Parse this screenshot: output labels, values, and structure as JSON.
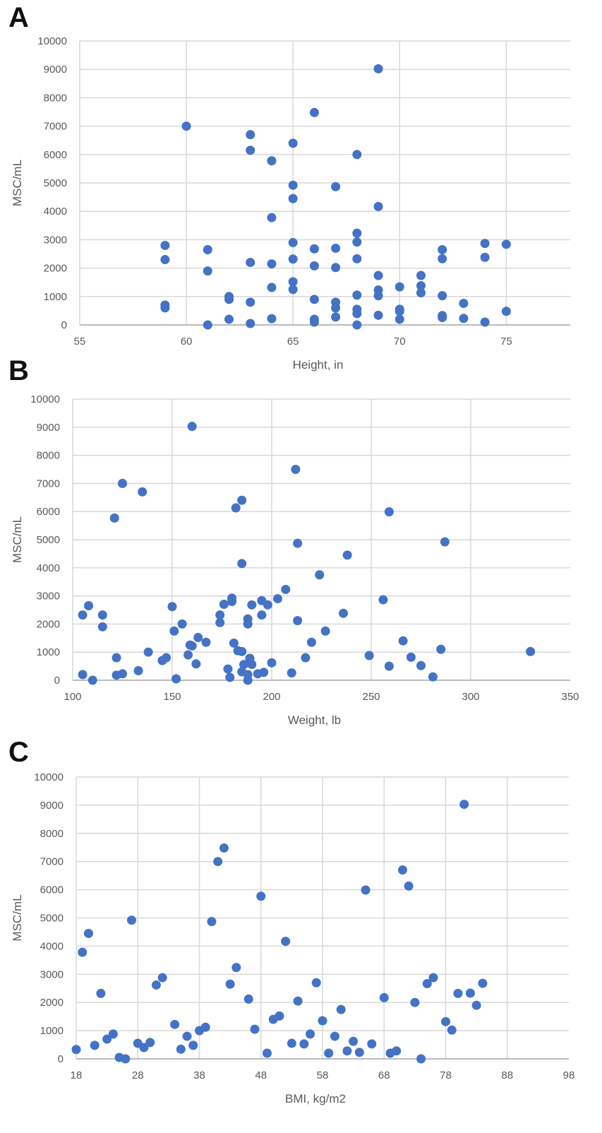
{
  "chart_data": [
    {
      "type": "scatter",
      "panel": "A",
      "xlabel": "Height, in",
      "ylabel": "MSC/mL",
      "xlim": [
        55,
        78
      ],
      "ylim": [
        0,
        10000
      ],
      "xticks": [
        55,
        60,
        65,
        70,
        75
      ],
      "yticks": [
        0,
        1000,
        2000,
        3000,
        4000,
        5000,
        6000,
        7000,
        8000,
        9000,
        10000
      ],
      "series": [
        {
          "color": "#4472c4",
          "points": [
            [
              59,
              2800
            ],
            [
              59,
              2300
            ],
            [
              59,
              700
            ],
            [
              59,
              600
            ],
            [
              60,
              7000
            ],
            [
              61,
              2650
            ],
            [
              61,
              1900
            ],
            [
              61,
              0
            ],
            [
              62,
              1000
            ],
            [
              62,
              900
            ],
            [
              62,
              200
            ],
            [
              63,
              6700
            ],
            [
              63,
              6150
            ],
            [
              63,
              2200
            ],
            [
              63,
              800
            ],
            [
              63,
              50
            ],
            [
              64,
              5780
            ],
            [
              64,
              3780
            ],
            [
              64,
              2150
            ],
            [
              64,
              1320
            ],
            [
              64,
              220
            ],
            [
              65,
              6400
            ],
            [
              65,
              4920
            ],
            [
              65,
              4450
            ],
            [
              65,
              2900
            ],
            [
              65,
              2320
            ],
            [
              65,
              1520
            ],
            [
              65,
              1250
            ],
            [
              66,
              7480
            ],
            [
              66,
              2680
            ],
            [
              66,
              2080
            ],
            [
              66,
              900
            ],
            [
              66,
              200
            ],
            [
              66,
              100
            ],
            [
              67,
              4870
            ],
            [
              67,
              2700
            ],
            [
              67,
              2020
            ],
            [
              67,
              800
            ],
            [
              67,
              600
            ],
            [
              67,
              280
            ],
            [
              68,
              6000
            ],
            [
              68,
              3230
            ],
            [
              68,
              2920
            ],
            [
              68,
              2330
            ],
            [
              68,
              1050
            ],
            [
              68,
              550
            ],
            [
              68,
              400
            ],
            [
              68,
              0
            ],
            [
              69,
              9020
            ],
            [
              69,
              4170
            ],
            [
              69,
              1740
            ],
            [
              69,
              1230
            ],
            [
              69,
              1030
            ],
            [
              69,
              340
            ],
            [
              70,
              1340
            ],
            [
              70,
              550
            ],
            [
              70,
              480
            ],
            [
              70,
              200
            ],
            [
              71,
              1740
            ],
            [
              71,
              1380
            ],
            [
              71,
              1130
            ],
            [
              72,
              2650
            ],
            [
              72,
              2330
            ],
            [
              72,
              1030
            ],
            [
              72,
              330
            ],
            [
              72,
              260
            ],
            [
              73,
              760
            ],
            [
              73,
              230
            ],
            [
              74,
              2870
            ],
            [
              74,
              2380
            ],
            [
              74,
              100
            ],
            [
              75,
              2840
            ],
            [
              75,
              480
            ]
          ]
        }
      ]
    },
    {
      "type": "scatter",
      "panel": "B",
      "xlabel": "Weight, lb",
      "ylabel": "MSC/mL",
      "xlim": [
        100,
        350
      ],
      "ylim": [
        0,
        10000
      ],
      "xticks": [
        100,
        150,
        200,
        250,
        300,
        350
      ],
      "yticks": [
        0,
        1000,
        2000,
        3000,
        4000,
        5000,
        6000,
        7000,
        8000,
        9000,
        10000
      ],
      "series": [
        {
          "color": "#4472c4",
          "points": [
            [
              105,
              2320
            ],
            [
              105,
              200
            ],
            [
              108,
              2650
            ],
            [
              110,
              0
            ],
            [
              115,
              2320
            ],
            [
              115,
              1900
            ],
            [
              121,
              5770
            ],
            [
              122,
              800
            ],
            [
              122,
              180
            ],
            [
              125,
              7000
            ],
            [
              125,
              230
            ],
            [
              133,
              340
            ],
            [
              135,
              6700
            ],
            [
              138,
              1000
            ],
            [
              145,
              700
            ],
            [
              147,
              800
            ],
            [
              150,
              2620
            ],
            [
              151,
              1750
            ],
            [
              152,
              50
            ],
            [
              155,
              2000
            ],
            [
              158,
              900
            ],
            [
              159,
              1250
            ],
            [
              160,
              1220
            ],
            [
              160,
              9030
            ],
            [
              162,
              580
            ],
            [
              163,
              1520
            ],
            [
              167,
              1350
            ],
            [
              174,
              2050
            ],
            [
              174,
              2320
            ],
            [
              176,
              2700
            ],
            [
              178,
              400
            ],
            [
              179,
              100
            ],
            [
              180,
              2920
            ],
            [
              180,
              2800
            ],
            [
              181,
              1320
            ],
            [
              182,
              6130
            ],
            [
              183,
              1050
            ],
            [
              185,
              6400
            ],
            [
              185,
              4150
            ],
            [
              185,
              1020
            ],
            [
              185,
              300
            ],
            [
              186,
              560
            ],
            [
              188,
              2180
            ],
            [
              188,
              2000
            ],
            [
              188,
              200
            ],
            [
              188,
              0
            ],
            [
              189,
              780
            ],
            [
              190,
              2680
            ],
            [
              190,
              560
            ],
            [
              193,
              230
            ],
            [
              195,
              2830
            ],
            [
              195,
              2320
            ],
            [
              196,
              280
            ],
            [
              198,
              2680
            ],
            [
              200,
              620
            ],
            [
              203,
              2900
            ],
            [
              207,
              3230
            ],
            [
              210,
              260
            ],
            [
              212,
              7500
            ],
            [
              213,
              4870
            ],
            [
              213,
              2120
            ],
            [
              224,
              3750
            ],
            [
              217,
              800
            ],
            [
              220,
              1350
            ],
            [
              227,
              1750
            ],
            [
              236,
              2380
            ],
            [
              238,
              4450
            ],
            [
              249,
              880
            ],
            [
              256,
              2860
            ],
            [
              259,
              5990
            ],
            [
              259,
              500
            ],
            [
              266,
              1400
            ],
            [
              270,
              820
            ],
            [
              275,
              520
            ],
            [
              281,
              120
            ],
            [
              285,
              1100
            ],
            [
              287,
              4920
            ],
            [
              330,
              1020
            ]
          ]
        }
      ]
    },
    {
      "type": "scatter",
      "panel": "C",
      "xlabel": "BMI, kg/m2",
      "ylabel": "MSC/mL",
      "xlim": [
        18,
        98
      ],
      "ylim": [
        0,
        10000
      ],
      "xticks": [
        18,
        28,
        38,
        48,
        58,
        68,
        78,
        88,
        98
      ],
      "yticks": [
        0,
        1000,
        2000,
        3000,
        4000,
        5000,
        6000,
        7000,
        8000,
        9000,
        10000
      ],
      "series": [
        {
          "color": "#4472c4",
          "points": [
            [
              18,
              330
            ],
            [
              19,
              3780
            ],
            [
              20,
              4450
            ],
            [
              21,
              480
            ],
            [
              22,
              2320
            ],
            [
              23,
              700
            ],
            [
              24,
              880
            ],
            [
              25,
              50
            ],
            [
              26,
              0
            ],
            [
              27,
              4920
            ],
            [
              28,
              550
            ],
            [
              29,
              400
            ],
            [
              30,
              580
            ],
            [
              31,
              2620
            ],
            [
              32,
              2880
            ],
            [
              34,
              1220
            ],
            [
              35,
              340
            ],
            [
              36,
              800
            ],
            [
              37,
              480
            ],
            [
              38,
              1000
            ],
            [
              39,
              1120
            ],
            [
              40,
              4870
            ],
            [
              41,
              7000
            ],
            [
              42,
              7480
            ],
            [
              43,
              2650
            ],
            [
              44,
              3240
            ],
            [
              46,
              2120
            ],
            [
              47,
              1050
            ],
            [
              48,
              5770
            ],
            [
              49,
              200
            ],
            [
              50,
              1400
            ],
            [
              51,
              1520
            ],
            [
              52,
              4170
            ],
            [
              53,
              550
            ],
            [
              54,
              2050
            ],
            [
              55,
              530
            ],
            [
              56,
              880
            ],
            [
              57,
              2700
            ],
            [
              58,
              1350
            ],
            [
              59,
              200
            ],
            [
              60,
              800
            ],
            [
              61,
              1750
            ],
            [
              62,
              280
            ],
            [
              63,
              620
            ],
            [
              64,
              230
            ],
            [
              65,
              5990
            ],
            [
              66,
              530
            ],
            [
              68,
              2170
            ],
            [
              69,
              200
            ],
            [
              70,
              280
            ],
            [
              71,
              6700
            ],
            [
              72,
              6130
            ],
            [
              73,
              2000
            ],
            [
              74,
              0
            ],
            [
              75,
              2670
            ],
            [
              76,
              2880
            ],
            [
              78,
              1320
            ],
            [
              79,
              1020
            ],
            [
              80,
              2320
            ],
            [
              81,
              9030
            ],
            [
              82,
              2330
            ],
            [
              83,
              1900
            ],
            [
              84,
              2680
            ]
          ]
        }
      ]
    }
  ]
}
